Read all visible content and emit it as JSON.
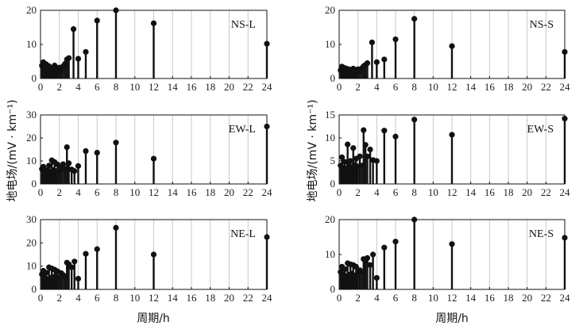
{
  "figure": {
    "ylabel": "地电场/(mV · km⁻¹)",
    "xlabel": "周期/h"
  },
  "chart_data": [
    {
      "type": "bar",
      "label": "NS-L",
      "xlim": [
        0,
        24
      ],
      "ylim": [
        0,
        20
      ],
      "xticks": [
        "0",
        "2",
        "4",
        "6",
        "8",
        "10",
        "12",
        "14",
        "16",
        "18",
        "20",
        "22",
        "24"
      ],
      "yticks": [
        "0",
        "10",
        "20"
      ],
      "grid": true,
      "x": [
        0.15,
        0.3,
        0.45,
        0.6,
        0.75,
        0.9,
        1.05,
        1.2,
        1.35,
        1.5,
        1.65,
        1.8,
        2.0,
        2.2,
        2.4,
        2.6,
        2.8,
        3.0,
        3.5,
        4.0,
        4.8,
        6.0,
        8.0,
        12.0,
        24.0
      ],
      "values": [
        3.8,
        4.8,
        3.2,
        4.2,
        2.6,
        3.6,
        2.2,
        3.1,
        2.4,
        3.8,
        2.1,
        2.8,
        3.2,
        2.3,
        3.6,
        4.3,
        5.6,
        6.0,
        14.5,
        5.8,
        7.8,
        17.0,
        20.0,
        16.2,
        10.2
      ]
    },
    {
      "type": "bar",
      "label": "NS-S",
      "xlim": [
        0,
        24
      ],
      "ylim": [
        0,
        20
      ],
      "xticks": [
        "0",
        "2",
        "4",
        "6",
        "8",
        "10",
        "12",
        "14",
        "16",
        "18",
        "20",
        "22",
        "24"
      ],
      "yticks": [
        "0",
        "10",
        "20"
      ],
      "grid": true,
      "x": [
        0.15,
        0.3,
        0.45,
        0.6,
        0.75,
        0.9,
        1.05,
        1.2,
        1.35,
        1.5,
        1.65,
        1.8,
        2.0,
        2.2,
        2.4,
        2.6,
        2.8,
        3.0,
        3.5,
        4.0,
        4.8,
        6.0,
        8.0,
        12.0,
        24.0
      ],
      "values": [
        2.4,
        3.5,
        2.1,
        3.1,
        1.9,
        2.8,
        2.2,
        2.6,
        2.0,
        2.9,
        2.3,
        2.5,
        2.7,
        2.1,
        3.0,
        3.6,
        4.0,
        4.5,
        10.6,
        4.8,
        5.6,
        11.5,
        17.5,
        9.5,
        7.8
      ]
    },
    {
      "type": "bar",
      "label": "EW-L",
      "xlim": [
        0,
        24
      ],
      "ylim": [
        0,
        30
      ],
      "xticks": [
        "0",
        "2",
        "4",
        "6",
        "8",
        "10",
        "12",
        "14",
        "16",
        "18",
        "20",
        "22",
        "24"
      ],
      "yticks": [
        "0",
        "10",
        "20",
        "30"
      ],
      "grid": true,
      "x": [
        0.15,
        0.3,
        0.45,
        0.6,
        0.75,
        0.9,
        1.05,
        1.2,
        1.35,
        1.5,
        1.65,
        1.8,
        2.0,
        2.2,
        2.4,
        2.6,
        2.8,
        3.0,
        3.3,
        3.6,
        4.0,
        4.8,
        6.0,
        8.0,
        12.0,
        24.0
      ],
      "values": [
        6.5,
        7.5,
        5.0,
        6.0,
        4.6,
        8.0,
        5.5,
        10.3,
        6.0,
        9.5,
        5.6,
        8.5,
        5.3,
        7.0,
        8.6,
        6.5,
        16.0,
        9.0,
        6.3,
        5.6,
        7.8,
        14.3,
        13.6,
        18.0,
        11.0,
        25.0
      ]
    },
    {
      "type": "bar",
      "label": "EW-S",
      "xlim": [
        0,
        24
      ],
      "ylim": [
        0,
        15
      ],
      "xticks": [
        "0",
        "2",
        "4",
        "6",
        "8",
        "10",
        "12",
        "14",
        "16",
        "18",
        "20",
        "22",
        "24"
      ],
      "yticks": [
        "0",
        "5",
        "10",
        "15"
      ],
      "grid": true,
      "x": [
        0.15,
        0.3,
        0.45,
        0.6,
        0.75,
        0.9,
        1.05,
        1.2,
        1.35,
        1.5,
        1.65,
        1.8,
        2.0,
        2.2,
        2.4,
        2.6,
        2.8,
        3.0,
        3.3,
        3.6,
        4.0,
        4.8,
        6.0,
        8.0,
        12.0,
        24.0
      ],
      "values": [
        4.0,
        5.8,
        3.5,
        4.8,
        3.3,
        8.6,
        4.0,
        5.0,
        3.5,
        7.8,
        4.2,
        5.5,
        3.8,
        6.0,
        4.0,
        11.7,
        8.5,
        6.0,
        7.5,
        5.2,
        5.0,
        11.6,
        10.3,
        14.0,
        10.7,
        14.2
      ]
    },
    {
      "type": "bar",
      "label": "NE-L",
      "xlim": [
        0,
        24
      ],
      "ylim": [
        0,
        30
      ],
      "xticks": [
        "0",
        "2",
        "4",
        "6",
        "8",
        "10",
        "12",
        "14",
        "16",
        "18",
        "20",
        "22",
        "24"
      ],
      "yticks": [
        "0",
        "10",
        "20",
        "30"
      ],
      "grid": true,
      "x": [
        0.15,
        0.3,
        0.45,
        0.6,
        0.75,
        0.9,
        1.05,
        1.2,
        1.35,
        1.5,
        1.65,
        1.8,
        2.0,
        2.2,
        2.4,
        2.6,
        2.8,
        3.0,
        3.3,
        3.6,
        4.0,
        4.8,
        6.0,
        8.0,
        12.0,
        24.0
      ],
      "values": [
        6.5,
        8.0,
        5.0,
        7.2,
        4.5,
        9.5,
        5.0,
        9.0,
        5.3,
        8.5,
        5.6,
        7.8,
        5.0,
        7.0,
        6.2,
        5.5,
        11.5,
        10.8,
        9.5,
        12.0,
        4.6,
        15.3,
        17.3,
        26.5,
        15.0,
        22.5
      ]
    },
    {
      "type": "bar",
      "label": "NE-S",
      "xlim": [
        0,
        24
      ],
      "ylim": [
        0,
        20
      ],
      "xticks": [
        "0",
        "2",
        "4",
        "6",
        "8",
        "10",
        "12",
        "14",
        "16",
        "18",
        "20",
        "22",
        "24"
      ],
      "yticks": [
        "0",
        "10",
        "20"
      ],
      "grid": true,
      "x": [
        0.15,
        0.3,
        0.45,
        0.6,
        0.75,
        0.9,
        1.05,
        1.2,
        1.35,
        1.5,
        1.65,
        1.8,
        2.0,
        2.2,
        2.4,
        2.6,
        2.8,
        3.0,
        3.3,
        3.6,
        4.0,
        4.8,
        6.0,
        8.0,
        12.0,
        24.0
      ],
      "values": [
        5.0,
        6.5,
        4.2,
        5.8,
        3.8,
        7.5,
        4.2,
        7.2,
        4.5,
        7.0,
        4.0,
        6.5,
        4.5,
        5.5,
        5.0,
        8.7,
        8.0,
        9.0,
        7.0,
        10.0,
        3.3,
        12.0,
        13.7,
        20.0,
        13.0,
        14.8
      ]
    }
  ]
}
